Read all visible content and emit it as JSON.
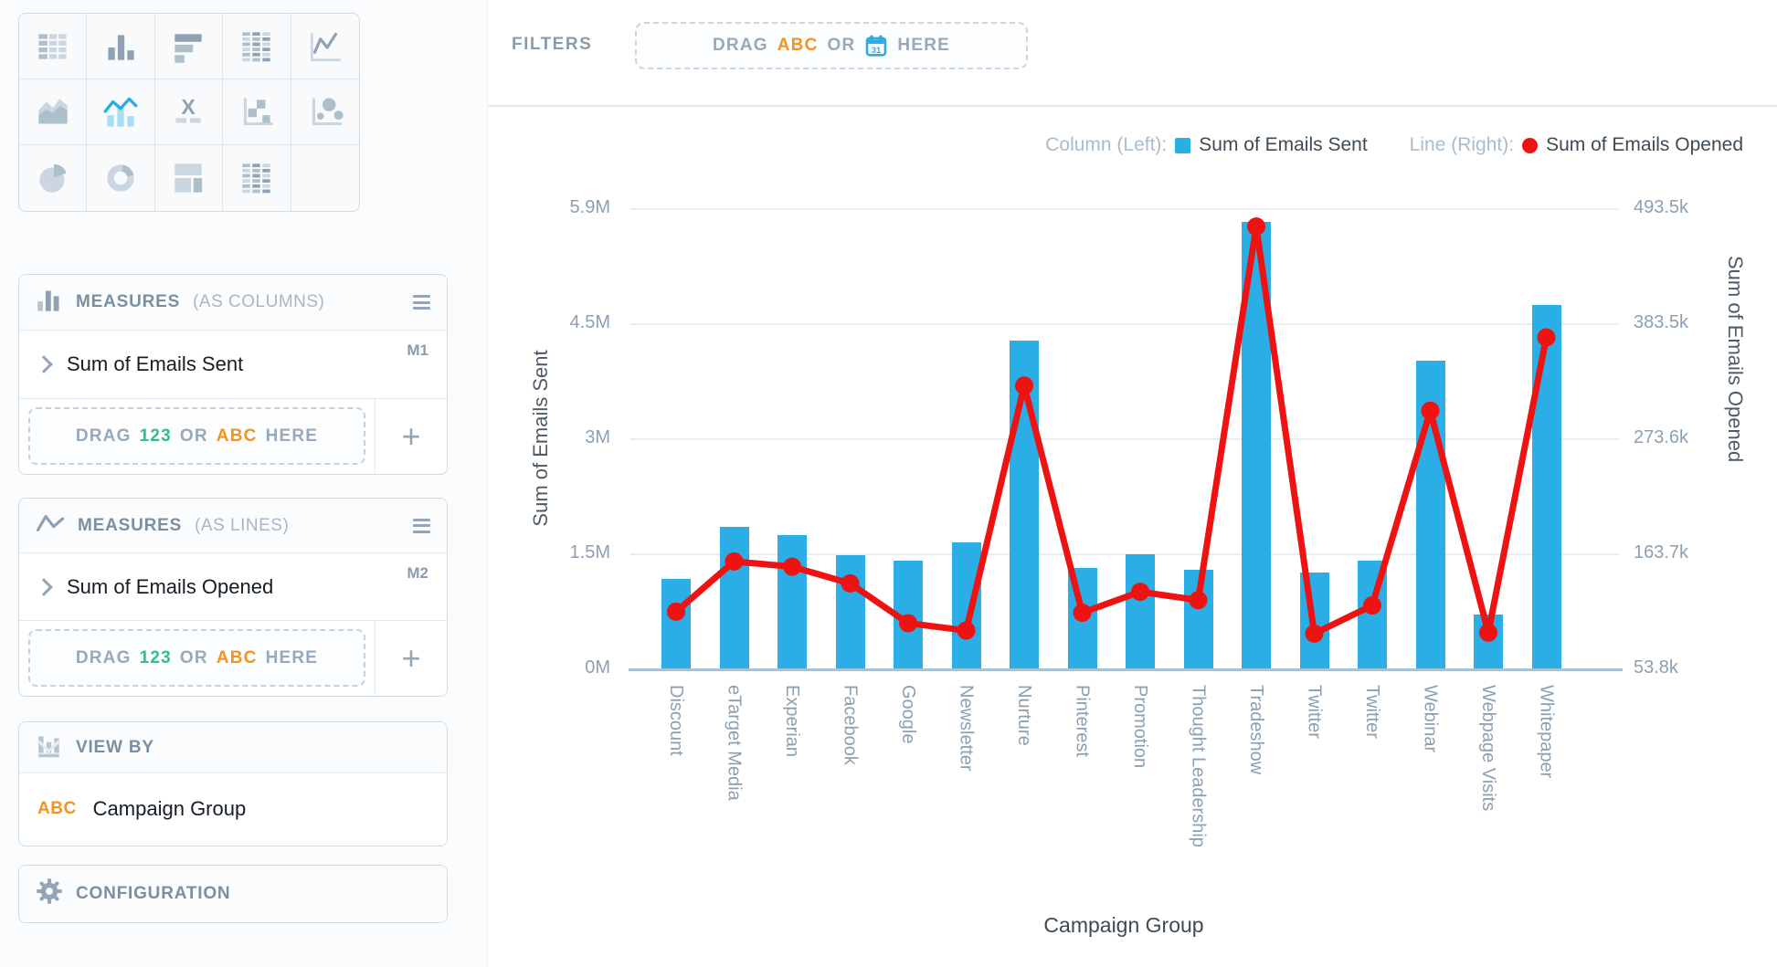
{
  "sidebar": {
    "chart_types": [
      {
        "name": "table",
        "selected": false
      },
      {
        "name": "column-chart",
        "selected": false
      },
      {
        "name": "bar-chart",
        "selected": false
      },
      {
        "name": "pivot-table",
        "selected": false
      },
      {
        "name": "line-chart",
        "selected": false
      },
      {
        "name": "area-chart",
        "selected": false
      },
      {
        "name": "combo-chart",
        "selected": true
      },
      {
        "name": "x-chart",
        "selected": false
      },
      {
        "name": "scatter-plot",
        "selected": false
      },
      {
        "name": "bubble-chart",
        "selected": false
      },
      {
        "name": "pie-chart",
        "selected": false
      },
      {
        "name": "donut-chart",
        "selected": false
      },
      {
        "name": "treemap",
        "selected": false
      },
      {
        "name": "pivot-table-2",
        "selected": false
      },
      {
        "name": "empty",
        "selected": false
      }
    ],
    "measures_columns": {
      "title_bold": "MEASURES",
      "title_rest": "(AS COLUMNS)",
      "item": "Sum of Emails Sent",
      "badge": "M1",
      "drop": {
        "drag": "DRAG",
        "num": "123",
        "or": "OR",
        "abc": "ABC",
        "here": "HERE"
      },
      "add_label": "+"
    },
    "measures_lines": {
      "title_bold": "MEASURES",
      "title_rest": "(AS LINES)",
      "item": "Sum of Emails Opened",
      "badge": "M2",
      "drop": {
        "drag": "DRAG",
        "num": "123",
        "or": "OR",
        "abc": "ABC",
        "here": "HERE"
      },
      "add_label": "+"
    },
    "view_by": {
      "title": "VIEW BY",
      "abc": "ABC",
      "item": "Campaign Group"
    },
    "configuration": {
      "title": "CONFIGURATION"
    }
  },
  "filters": {
    "label": "FILTERS",
    "drop": {
      "drag": "DRAG",
      "abc": "ABC",
      "or": "OR",
      "here": "HERE"
    }
  },
  "legend": {
    "column_label": "Column (Left):",
    "column_series": "Sum of Emails Sent",
    "line_label": "Line (Right):",
    "line_series": "Sum of Emails Opened"
  },
  "icons": {
    "filters_drop": "calendar-icon",
    "measures_columns": "mini-bar-chart-icon",
    "measures_lines": "mini-line-chart-icon",
    "view_by": "mini-grouped-bars-icon",
    "configuration": "gear-icon",
    "panel_menu": "hamburger-icon",
    "measure_expand": "chevron-right-icon",
    "add": "plus-icon"
  },
  "chart_data": {
    "type": "combo bar+line",
    "categories": [
      "Discount",
      "eTarget Media",
      "Experian",
      "Facebook",
      "Google",
      "Newsletter",
      "Nurture",
      "Pinterest",
      "Promotion",
      "Thought Leadership",
      "Tradeshow",
      "Twitter",
      "Twitter",
      "Webinar",
      "Webpage Visits",
      "Whitepaper"
    ],
    "series": [
      {
        "name": "Sum of Emails Sent",
        "type": "bar",
        "axis": "left",
        "color": "#2aaee5",
        "unit": "millions",
        "values": [
          1.15,
          1.82,
          1.71,
          1.45,
          1.38,
          1.61,
          4.2,
          1.29,
          1.46,
          1.26,
          5.72,
          1.23,
          1.38,
          3.95,
          0.69,
          4.66
        ]
      },
      {
        "name": "Sum of Emails Opened",
        "type": "line",
        "axis": "right",
        "color": "#ee1212",
        "unit": "thousands",
        "values": [
          108,
          156,
          151,
          135,
          97,
          90,
          324,
          107,
          127,
          119,
          476,
          87,
          114,
          300,
          88,
          370
        ]
      }
    ],
    "left_axis": {
      "title": "Sum of Emails Sent",
      "ticks": [
        "0M",
        "1.5M",
        "3M",
        "4.5M",
        "5.9M"
      ],
      "min": 0,
      "max_millions": 5.9
    },
    "right_axis": {
      "title": "Sum of Emails Opened",
      "ticks": [
        "53.8k",
        "163.7k",
        "273.6k",
        "383.5k",
        "493.5k"
      ],
      "min_thousands": 53.8,
      "max_thousands": 493.5
    },
    "x_axis": {
      "title": "Campaign Group"
    },
    "grid": true,
    "legend_position": "top-right"
  }
}
